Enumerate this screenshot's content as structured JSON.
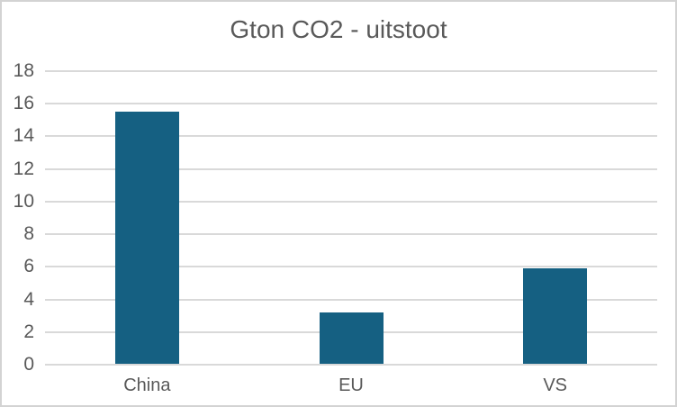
{
  "chart": {
    "colors": {
      "bar": "#156082",
      "gridline": "#d9d9d9",
      "axis_text": "#595959",
      "title_text": "#595959",
      "frame_border": "#d3d3d3",
      "background": "#ffffff"
    }
  },
  "chart_data": {
    "type": "bar",
    "title": "Gton CO2 - uitstoot",
    "categories": [
      "China",
      "EU",
      "VS"
    ],
    "values": [
      15.5,
      3.2,
      5.9
    ],
    "xlabel": "",
    "ylabel": "",
    "ylim": [
      0,
      18
    ],
    "yticks": [
      0,
      2,
      4,
      6,
      8,
      10,
      12,
      14,
      16,
      18
    ],
    "ytick_labels": [
      "0",
      "2",
      "4",
      "6",
      "8",
      "10",
      "12",
      "14",
      "16",
      "18"
    ],
    "grid": true,
    "legend": false
  }
}
